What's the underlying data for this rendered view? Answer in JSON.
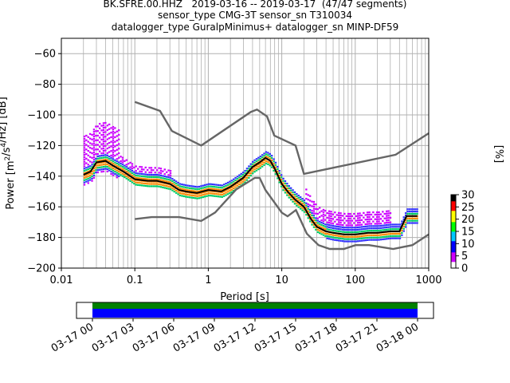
{
  "title_lines": [
    "BK.SFRE.00.HHZ   2019-03-16 -- 2019-03-17  (47/47 segments)",
    "sensor_type CMG-3T sensor_sn T310034",
    "datalogger_type GuralpMinimus+ datalogger_sn MINP-DF59"
  ],
  "chart_data": [
    {
      "type": "heatmap",
      "subtype": "probabilistic power spectral density",
      "xlabel": "Period [s]",
      "ylabel_prefix": "Power [m",
      "ylabel_sup1": "2",
      "ylabel_mid": "/s",
      "ylabel_sup2": "4",
      "ylabel_suffix": "/Hz] [dB]",
      "x_scale": "log",
      "xlim": [
        0.01,
        1000
      ],
      "ylim": [
        -200,
        -50
      ],
      "x_ticks": [
        0.01,
        0.1,
        1,
        10,
        100,
        1000
      ],
      "x_tick_labels": [
        "0.01",
        "0.1",
        "1",
        "10",
        "100",
        "1000"
      ],
      "y_ticks": [
        -200,
        -180,
        -160,
        -140,
        -120,
        -100,
        -80,
        -60
      ],
      "y_tick_labels": [
        "−200",
        "−180",
        "−160",
        "−140",
        "−120",
        "−100",
        "−80",
        "−60"
      ],
      "grid": true,
      "colorbar": {
        "label": "[%]",
        "range": [
          0,
          30
        ],
        "ticks": [
          0,
          5,
          10,
          15,
          20,
          25,
          30
        ],
        "tick_labels": [
          "0",
          "5",
          "10",
          "15",
          "20",
          "25",
          "30"
        ],
        "colormap": [
          "#ffffff",
          "#d000ff",
          "#0000ff",
          "#00c8ff",
          "#00ff00",
          "#ffff00",
          "#ff0000",
          "#000000"
        ]
      },
      "series": [
        {
          "name": "NHNM",
          "color": "#666666",
          "x": [
            0.1,
            0.22,
            0.32,
            0.8,
            3.8,
            4.6,
            6.3,
            7.9,
            15.4,
            20,
            354.8,
            1000
          ],
          "y": [
            -91.5,
            -97.4,
            -110.5,
            -120,
            -98,
            -96.5,
            -101,
            -113.5,
            -120,
            -138.5,
            -126,
            -112
          ]
        },
        {
          "name": "NLNM",
          "color": "#666666",
          "x": [
            0.1,
            0.17,
            0.4,
            0.8,
            1.24,
            2.4,
            4.3,
            5,
            6,
            10,
            12,
            15.6,
            21.9,
            31.6,
            45,
            70,
            101,
            154,
            328,
            600,
            1000
          ],
          "y": [
            -168,
            -166.7,
            -166.7,
            -169.2,
            -163.7,
            -148.6,
            -141.1,
            -141.1,
            -149,
            -163.8,
            -166.2,
            -162.1,
            -177.5,
            -185,
            -187.5,
            -187.5,
            -185,
            -185,
            -187.5,
            -185,
            -178
          ]
        },
        {
          "name": "mode",
          "color": "#000000",
          "x": [
            0.02,
            0.025,
            0.03,
            0.04,
            0.05,
            0.07,
            0.1,
            0.15,
            0.2,
            0.3,
            0.4,
            0.5,
            0.7,
            1,
            1.5,
            2,
            3,
            4,
            5,
            6,
            7,
            8,
            10,
            12,
            15,
            20,
            25,
            30,
            40,
            50,
            70,
            100,
            150,
            200,
            300,
            400,
            500,
            700
          ],
          "y": [
            -139,
            -137,
            -131,
            -130,
            -133,
            -137,
            -142,
            -143,
            -143,
            -145,
            -149,
            -150,
            -151,
            -149,
            -150,
            -147,
            -141,
            -134,
            -131,
            -128,
            -130,
            -135,
            -145,
            -150,
            -155,
            -160,
            -168,
            -173,
            -176,
            -177,
            -178,
            -178,
            -177,
            -177,
            -176,
            -176,
            -166,
            -166
          ]
        }
      ]
    },
    {
      "type": "timeline",
      "subtype": "data coverage",
      "x_tick_labels": [
        "03-17 00",
        "03-17 03",
        "03-17 06",
        "03-17 09",
        "03-17 12",
        "03-17 15",
        "03-17 18",
        "03-17 21",
        "03-18 00"
      ],
      "coverage_start": "03-17 00",
      "coverage_end": "03-18 00",
      "bars": [
        {
          "name": "data",
          "color": "#008000"
        },
        {
          "name": "psd-segments",
          "color": "#0000ff"
        }
      ]
    }
  ]
}
